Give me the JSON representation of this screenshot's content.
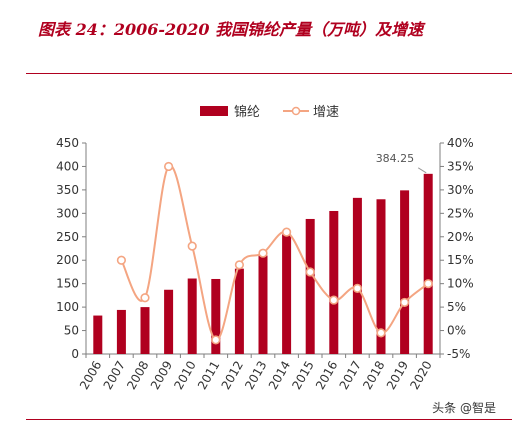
{
  "header": {
    "title": "图表 24：2006-2020 我国锦纶产量（万吨）及增速"
  },
  "watermark": "头条 @智是",
  "colors": {
    "title": "#b0001f",
    "bar": "#b0001f",
    "line": "#f4a582",
    "marker_fill": "#ffffff",
    "axis": "#7f7f7f"
  },
  "chart_data": {
    "type": "bar",
    "categories": [
      "2006",
      "2007",
      "2008",
      "2009",
      "2010",
      "2011",
      "2012",
      "2013",
      "2014",
      "2015",
      "2016",
      "2017",
      "2018",
      "2019",
      "2020"
    ],
    "series": [
      {
        "name": "锦纶",
        "type": "bar",
        "axis": "left",
        "values": [
          82,
          94,
          100,
          137,
          161,
          160,
          182,
          210,
          255,
          288,
          305,
          333,
          330,
          349,
          384.25
        ]
      },
      {
        "name": "增速",
        "type": "line",
        "axis": "right",
        "unit": "%",
        "values": [
          null,
          15,
          7,
          35,
          18,
          -2,
          14,
          16.5,
          21,
          12.5,
          6.5,
          9,
          -0.5,
          6,
          10
        ]
      }
    ],
    "yleft": {
      "lim": [
        0,
        450
      ],
      "ticks": [
        "0",
        "50",
        "100",
        "150",
        "200",
        "250",
        "300",
        "350",
        "400",
        "450"
      ]
    },
    "yright": {
      "lim": [
        -5,
        40
      ],
      "ticks": [
        "-5%",
        "0%",
        "5%",
        "10%",
        "15%",
        "20%",
        "25%",
        "30%",
        "35%",
        "40%"
      ]
    },
    "legend": {
      "position": "top-center"
    },
    "annotation": {
      "label": "384.25",
      "category": "2020",
      "value": 384.25
    },
    "grid": false
  }
}
